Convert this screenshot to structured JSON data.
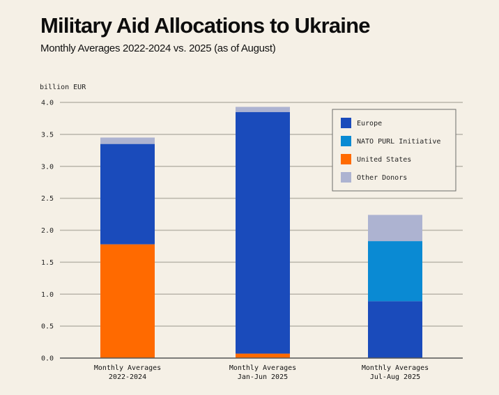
{
  "chart_data": {
    "type": "bar",
    "stacked": true,
    "title": "Military Aid Allocations to Ukraine",
    "subtitle": "Monthly Averages 2022-2024 vs. 2025 (as of August)",
    "xlabel": "",
    "ylabel": "billion EUR",
    "ylim": [
      0,
      4.0
    ],
    "yticks": [
      "0.0",
      "0.5",
      "1.0",
      "1.5",
      "2.0",
      "2.5",
      "3.0",
      "3.5",
      "4.0"
    ],
    "grid": true,
    "legend_position": "top-right",
    "categories": [
      [
        "Monthly Averages",
        "2022-2024"
      ],
      [
        "Monthly Averages",
        "Jan-Jun 2025"
      ],
      [
        "Monthly Averages",
        "Jul-Aug 2025"
      ]
    ],
    "stack_order": [
      "United States",
      "Europe",
      "NATO PURL Initiative",
      "Other Donors"
    ],
    "series": [
      {
        "name": "Europe",
        "color": "#1a4bbb",
        "values": [
          1.57,
          3.78,
          0.89
        ]
      },
      {
        "name": "NATO PURL Initiative",
        "color": "#0a8ad3",
        "values": [
          0,
          0,
          0.94
        ]
      },
      {
        "name": "United States",
        "color": "#ff6a00",
        "values": [
          1.78,
          0.07,
          0
        ]
      },
      {
        "name": "Other Donors",
        "color": "#adb3d1",
        "values": [
          0.1,
          0.08,
          0.41
        ]
      }
    ],
    "legend_order": [
      "Europe",
      "NATO PURL Initiative",
      "United States",
      "Other Donors"
    ]
  }
}
